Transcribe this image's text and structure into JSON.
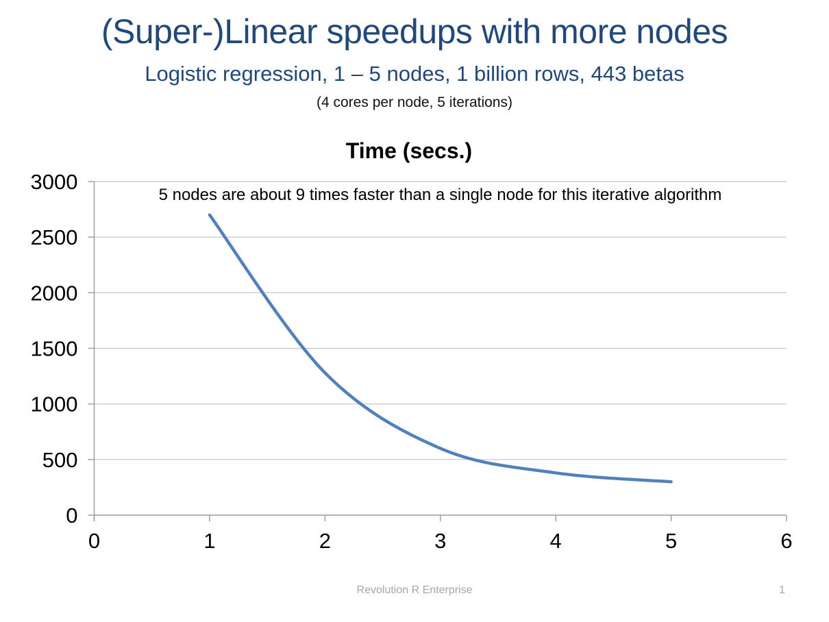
{
  "slide": {
    "title": "(Super-)Linear speedups with more nodes",
    "subtitle": "Logistic regression, 1 – 5 nodes, 1 billion rows, 443 betas",
    "note": "(4 cores per node, 5 iterations)"
  },
  "chart_data": {
    "type": "line",
    "title": "Time (secs.)",
    "annotation": "5 nodes are about 9 times faster than a single node for this iterative algorithm",
    "x": [
      1,
      2,
      3,
      4,
      5
    ],
    "values": [
      2700,
      1280,
      600,
      380,
      300
    ],
    "xlabel": "",
    "ylabel": "",
    "xlim": [
      0,
      6
    ],
    "ylim": [
      0,
      3000
    ],
    "x_ticks": [
      0,
      1,
      2,
      3,
      4,
      5,
      6
    ],
    "y_ticks": [
      0,
      500,
      1000,
      1500,
      2000,
      2500,
      3000
    ],
    "grid": "horizontal",
    "legend": "none",
    "smooth_line": true
  },
  "footer": {
    "text": "Revolution R Enterprise",
    "page_number": "1"
  },
  "colors": {
    "title_blue": "#1F497D",
    "subtitle_blue": "#1F497D",
    "line_blue": "#4F81BD",
    "gridline": "#C3C3C3",
    "axis": "#9B9B9B",
    "tick_label": "#000000",
    "footer_gray": "#A6A6A6"
  }
}
